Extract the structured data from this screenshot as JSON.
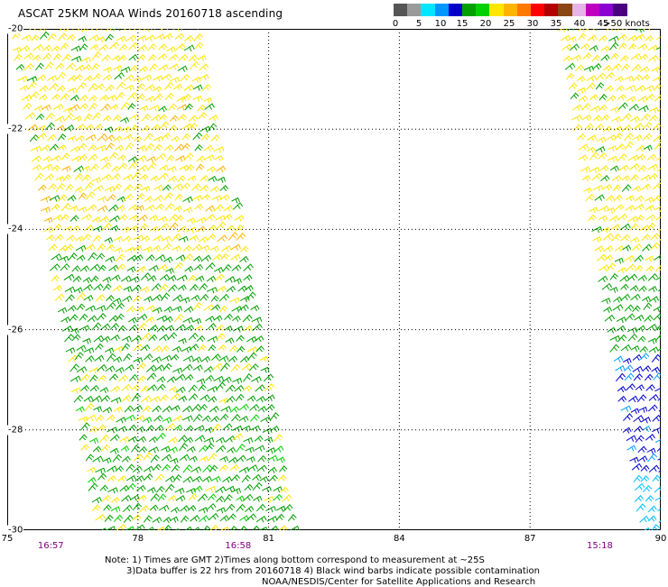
{
  "title": "ASCAT 25KM NOAA Winds 20160718 ascending",
  "legend": {
    "colors": [
      "#555555",
      "#9a9a9a",
      "#00e6ff",
      "#0096ff",
      "#0000cd",
      "#00a000",
      "#00d000",
      "#ffe600",
      "#ffb400",
      "#ff7800",
      "#ff0000",
      "#b40000",
      "#8b4513",
      "#e6b4e6",
      "#c000c0",
      "#8c00d0",
      "#4b0082"
    ],
    "labels": [
      "0",
      "5",
      "10",
      "15",
      "20",
      "25",
      "30",
      "35",
      "40",
      "45",
      ">50 knots"
    ]
  },
  "chart_data": {
    "type": "wind-barb map",
    "lat_labels": [
      "-20",
      "-22",
      "-24",
      "-26",
      "-28",
      "-30"
    ],
    "lon_labels": [
      "75",
      "78",
      "81",
      "84",
      "87",
      "90"
    ],
    "lon_range": [
      75,
      90
    ],
    "lat_range": [
      -20,
      -30
    ],
    "pass_times": [
      {
        "lon": 76,
        "time": "16:57"
      },
      {
        "lon": 80.3,
        "time": "16:58"
      },
      {
        "lon": 88.6,
        "time": "15:18"
      }
    ],
    "swaths": [
      {
        "name": "west",
        "zones": [
          {
            "lat": [
              -20,
              -24.5
            ],
            "color": "#ffe600",
            "speed_kt": "20-25"
          },
          {
            "lat": [
              -24.5,
              -27
            ],
            "color": "#00a000",
            "speed_kt": "15-20"
          },
          {
            "lat": [
              -27,
              -30
            ],
            "color": "#00a000",
            "speed_kt": "15-20"
          }
        ]
      },
      {
        "name": "east",
        "zones": [
          {
            "lat": [
              -20,
              -25
            ],
            "color": "#ffe600",
            "speed_kt": "20-25"
          },
          {
            "lat": [
              -25,
              -26.5
            ],
            "color": "#00a000",
            "speed_kt": "15-20"
          },
          {
            "lat": [
              -26.5,
              -29
            ],
            "color": "#0000cd",
            "speed_kt": "10-15"
          },
          {
            "lat": [
              -29,
              -30
            ],
            "color": "#00bfff",
            "speed_kt": "5-10"
          }
        ]
      }
    ],
    "grid": "dotted"
  },
  "notes": [
    "Note: 1) Times are GMT 2)Times along bottom correspond to measurement at ~25S",
    "3)Data buffer is 22 hrs from 20160718 4) Black wind barbs indicate possible contamination",
    "NOAA/NESDIS/Center for Satellite Applications and Research"
  ]
}
